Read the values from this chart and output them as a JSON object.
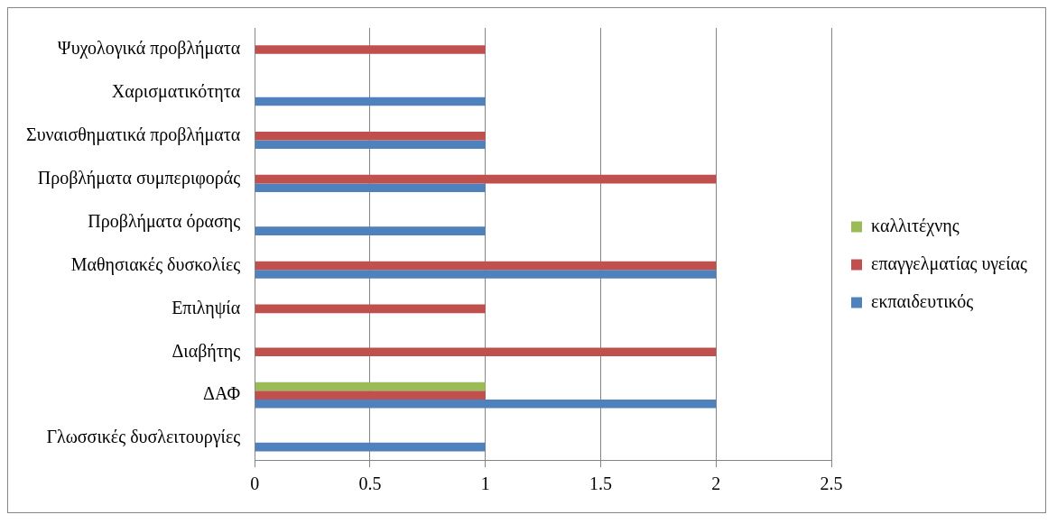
{
  "chart_data": {
    "type": "bar",
    "orientation": "horizontal",
    "categories": [
      "Ψυχολογικά προβλήματα",
      "Χαρισματικότητα",
      "Συναισθηματικά προβλήματα",
      "Προβλήματα συμπεριφοράς",
      "Προβλήματα όρασης",
      "Μαθησιακές δυσκολίες",
      "Επιληψία",
      "Διαβήτης",
      "ΔΑΦ",
      "Γλωσσικές δυσλειτουργίες"
    ],
    "series": [
      {
        "name": "καλλιτέχνης",
        "color": "#9bbb59",
        "values": [
          null,
          null,
          null,
          null,
          null,
          null,
          null,
          null,
          1,
          null
        ]
      },
      {
        "name": "επαγγελματίας υγείας",
        "color": "#c0504d",
        "values": [
          1,
          null,
          1,
          2,
          null,
          2,
          1,
          2,
          1,
          null
        ]
      },
      {
        "name": "εκπαιδευτικός",
        "color": "#4f81bd",
        "values": [
          null,
          1,
          1,
          1,
          1,
          2,
          null,
          null,
          2,
          1
        ]
      }
    ],
    "xlim": [
      0,
      2.5
    ],
    "xticks": [
      0,
      0.5,
      1,
      1.5,
      2,
      2.5
    ],
    "grid": "x",
    "legend": "right"
  }
}
